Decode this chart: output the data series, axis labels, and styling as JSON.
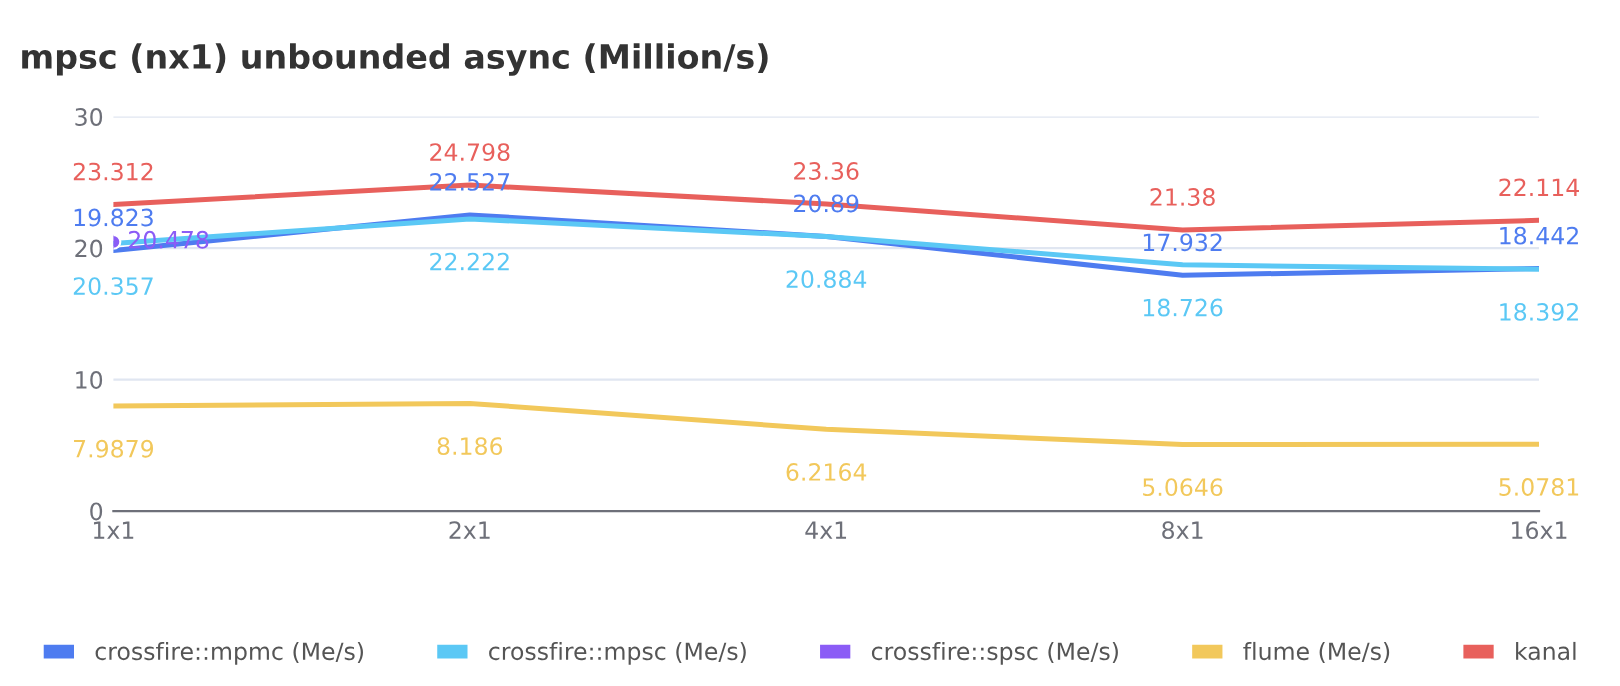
{
  "chart_data": {
    "type": "line",
    "title": "mpsc (nx1) unbounded async (Million/s)",
    "categories": [
      "1x1",
      "2x1",
      "4x1",
      "8x1",
      "16x1"
    ],
    "series": [
      {
        "name": "crossfire::mpmc (Me/s)",
        "color": "#4e7cf0",
        "values": [
          19.823,
          22.527,
          20.89,
          17.932,
          18.442
        ]
      },
      {
        "name": "crossfire::mpsc (Me/s)",
        "color": "#5bc8f5",
        "values": [
          20.357,
          22.222,
          20.884,
          18.726,
          18.392
        ]
      },
      {
        "name": "crossfire::spsc (Me/s)",
        "color": "#8b5cf6",
        "values": [
          20.478,
          null,
          null,
          null,
          null
        ],
        "marker": "circle"
      },
      {
        "name": "flume (Me/s)",
        "color": "#f2c85b",
        "values": [
          7.9879,
          8.186,
          6.2164,
          5.0646,
          5.0781
        ]
      },
      {
        "name": "kanal",
        "color": "#e8605c",
        "values": [
          23.312,
          24.798,
          23.36,
          21.38,
          22.114
        ]
      }
    ],
    "ylim": [
      0,
      30
    ],
    "yticks": [
      0,
      10,
      20,
      30
    ],
    "grid": "y",
    "legend": "bottom",
    "data_labels": true
  }
}
